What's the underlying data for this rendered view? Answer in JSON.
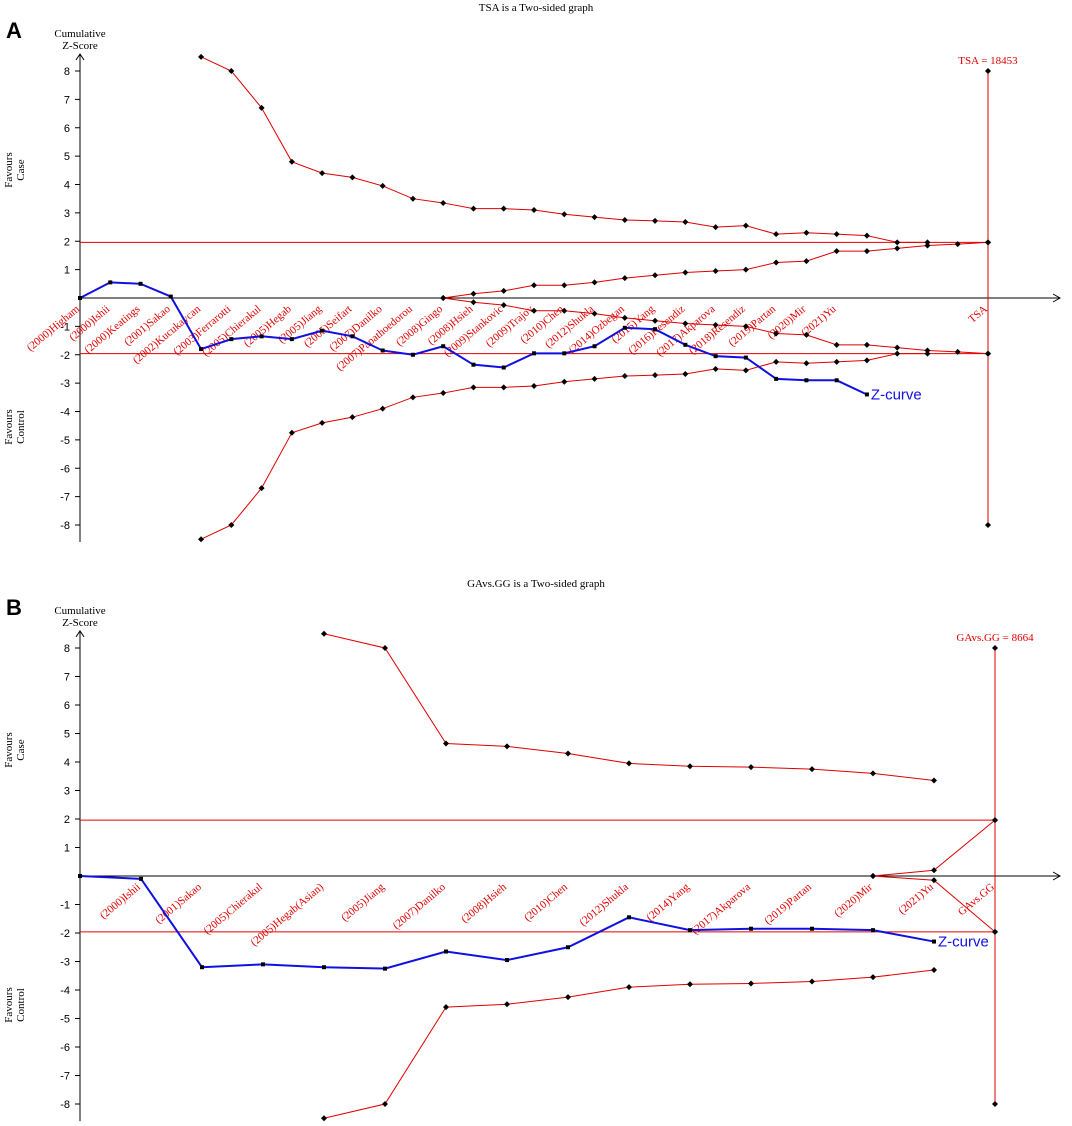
{
  "colors": {
    "boundary": "#e00000",
    "zcurve": "#1010e0",
    "axis": "#000000",
    "marker": "#000000"
  },
  "chart_data": [
    {
      "type": "line",
      "panel_letter": "A",
      "title": "TSA is a Two-sided graph",
      "ylabel": [
        "Cumulative",
        "Z-Score"
      ],
      "favours_case": [
        "Favours",
        "Case"
      ],
      "favours_control": [
        "Favours",
        "Control"
      ],
      "ylim": [
        -8.6,
        8.6
      ],
      "yticks": [
        -8,
        -7,
        -6,
        -5,
        -4,
        -3,
        -2,
        -1,
        1,
        2,
        3,
        4,
        5,
        6,
        7,
        8
      ],
      "n_points": 31,
      "categories": [
        "(2000)Higham",
        "(2000)Ishii",
        "(2000)Keatings",
        "(2001)Sakao",
        "(2002)Kucukaycan",
        "(2003)Ferrarotti",
        "(2005)Chierakul",
        "(2005)Hegab",
        "(2005)Jiang",
        "(2005)Seifart",
        "(2007)Danilko",
        "(2007)Papathoedorou",
        "(2008)Gingo",
        "(2008)Hsieh",
        "(2009)Stankovic",
        "(2009)Trajov",
        "(2010)Chen",
        "(2012)Shukla",
        "(2014)Ozbegan",
        "(2015)Yang",
        "(2016)Resendiz",
        "(2017)Akparova",
        "(2018)Resendiz",
        "(2019)Partan",
        "(2020)Mir",
        "(2021)Yu",
        "TSA"
      ],
      "category_index": [
        0,
        1,
        2,
        3,
        4,
        5,
        6,
        7,
        8,
        9,
        10,
        11,
        12,
        13,
        14,
        15,
        16,
        17,
        18,
        19,
        20,
        21,
        22,
        23,
        24,
        25,
        30
      ],
      "conventional_boundary": 1.96,
      "tsa_label": "TSA = 18453",
      "tsa_index": 30,
      "tsa_range": [
        -8,
        8
      ],
      "zcurve_name": "Z-curve",
      "zcurve": {
        "x": [
          0,
          1,
          2,
          3,
          4,
          5,
          6,
          7,
          8,
          9,
          10,
          11,
          12,
          13,
          14,
          15,
          16,
          17,
          18,
          19,
          20,
          21,
          22,
          23,
          24,
          25
        ],
        "y": [
          0.0,
          0.55,
          0.5,
          0.05,
          -1.8,
          -1.45,
          -1.35,
          -1.45,
          -1.15,
          -1.35,
          -1.85,
          -2.0,
          -1.7,
          -2.35,
          -2.45,
          -1.95,
          -1.95,
          -1.7,
          -1.05,
          -1.1,
          -1.65,
          -2.05,
          -2.1,
          -2.85,
          -2.9,
          -2.9
        ]
      },
      "zcurve_end": {
        "x": 26,
        "y": -3.4
      },
      "upper_boundary": {
        "x": [
          4,
          5,
          6,
          7,
          8,
          9,
          10,
          11,
          12,
          13,
          14,
          15,
          16,
          17,
          18,
          19,
          20,
          21,
          22,
          23,
          24,
          25,
          26,
          27,
          28
        ],
        "y": [
          8.5,
          8.0,
          6.7,
          4.8,
          4.4,
          4.25,
          3.95,
          3.5,
          3.35,
          3.15,
          3.15,
          3.1,
          2.95,
          2.85,
          2.75,
          2.72,
          2.68,
          2.5,
          2.55,
          2.25,
          2.3,
          2.25,
          2.2,
          1.96,
          1.96
        ]
      },
      "lower_boundary": {
        "x": [
          4,
          5,
          6,
          7,
          8,
          9,
          10,
          11,
          12,
          13,
          14,
          15,
          16,
          17,
          18,
          19,
          20,
          21,
          22,
          23,
          24,
          25,
          26,
          27,
          28
        ],
        "y": [
          -8.5,
          -8.0,
          -6.7,
          -4.75,
          -4.4,
          -4.2,
          -3.9,
          -3.5,
          -3.35,
          -3.15,
          -3.15,
          -3.1,
          -2.95,
          -2.85,
          -2.75,
          -2.72,
          -2.68,
          -2.5,
          -2.55,
          -2.25,
          -2.3,
          -2.25,
          -2.2,
          -1.96,
          -1.96
        ]
      },
      "futility_upper": {
        "x": [
          12,
          13,
          14,
          15,
          16,
          17,
          18,
          19,
          20,
          21,
          22,
          23,
          24,
          25,
          26,
          27,
          28,
          29,
          30
        ],
        "y": [
          0.0,
          0.15,
          0.25,
          0.45,
          0.45,
          0.55,
          0.7,
          0.8,
          0.9,
          0.95,
          1.0,
          1.25,
          1.3,
          1.65,
          1.65,
          1.75,
          1.85,
          1.9,
          1.96
        ]
      },
      "futility_lower": {
        "x": [
          12,
          13,
          14,
          15,
          16,
          17,
          18,
          19,
          20,
          21,
          22,
          23,
          24,
          25,
          26,
          27,
          28,
          29,
          30
        ],
        "y": [
          0.0,
          -0.15,
          -0.25,
          -0.45,
          -0.45,
          -0.55,
          -0.7,
          -0.8,
          -0.9,
          -0.95,
          -1.0,
          -1.25,
          -1.3,
          -1.65,
          -1.65,
          -1.75,
          -1.85,
          -1.9,
          -1.96
        ]
      }
    },
    {
      "type": "line",
      "panel_letter": "B",
      "title": "GAvs.GG is a Two-sided graph",
      "ylabel": [
        "Cumulative",
        "Z-Score"
      ],
      "favours_case": [
        "Favours",
        "Case"
      ],
      "favours_control": [
        "Favours",
        "Control"
      ],
      "ylim": [
        -8.6,
        8.6
      ],
      "yticks": [
        -8,
        -7,
        -6,
        -5,
        -4,
        -3,
        -2,
        -1,
        1,
        2,
        3,
        4,
        5,
        6,
        7,
        8
      ],
      "n_points": 16,
      "categories": [
        "(2000)Ishii",
        "(2001)Sakao",
        "(2005)Chierakul",
        "(2005)Hegab(Asian)",
        "(2005)Jiang",
        "(2007)Danilko",
        "(2008)Hsieh",
        "(2010)Chen",
        "(2012)Shukla",
        "(2014)Yang",
        "(2017)Akparova",
        "(2019)Partan",
        "(2020)Mir",
        "(2021)Yu",
        "GAvs.GG"
      ],
      "category_index": [
        1,
        2,
        3,
        4,
        5,
        6,
        7,
        8,
        9,
        10,
        11,
        12,
        13,
        14,
        15
      ],
      "conventional_boundary": 1.96,
      "tsa_label": "GAvs.GG = 8664",
      "tsa_index": 15,
      "tsa_range": [
        -8,
        8
      ],
      "zcurve_name": "Z-curve",
      "zcurve": {
        "x": [
          0,
          1,
          2,
          3,
          4,
          5,
          6,
          7,
          8,
          9,
          10,
          11,
          12,
          13
        ],
        "y": [
          0.0,
          -0.1,
          -3.2,
          -3.1,
          -3.2,
          -3.25,
          -2.65,
          -2.95,
          -2.5,
          -1.45,
          -1.9,
          -1.85,
          -1.85,
          -1.9
        ]
      },
      "zcurve_end": {
        "x": 14,
        "y": -2.3
      },
      "upper_boundary": {
        "x": [
          4,
          5,
          6,
          7,
          8,
          9,
          10,
          11,
          12,
          13,
          14
        ],
        "y": [
          8.5,
          8.0,
          4.65,
          4.55,
          4.3,
          3.95,
          3.85,
          3.82,
          3.75,
          3.6,
          3.35
        ]
      },
      "lower_boundary": {
        "x": [
          4,
          5,
          6,
          7,
          8,
          9,
          10,
          11,
          12,
          13,
          14
        ],
        "y": [
          -8.5,
          -8.0,
          -4.6,
          -4.5,
          -4.25,
          -3.9,
          -3.8,
          -3.77,
          -3.7,
          -3.55,
          -3.3
        ]
      },
      "futility_upper": {
        "x": [
          13,
          14,
          15
        ],
        "y": [
          0.0,
          0.2,
          1.96
        ]
      },
      "futility_lower": {
        "x": [
          13,
          14,
          15
        ],
        "y": [
          0.0,
          -0.15,
          -1.96
        ]
      }
    }
  ]
}
